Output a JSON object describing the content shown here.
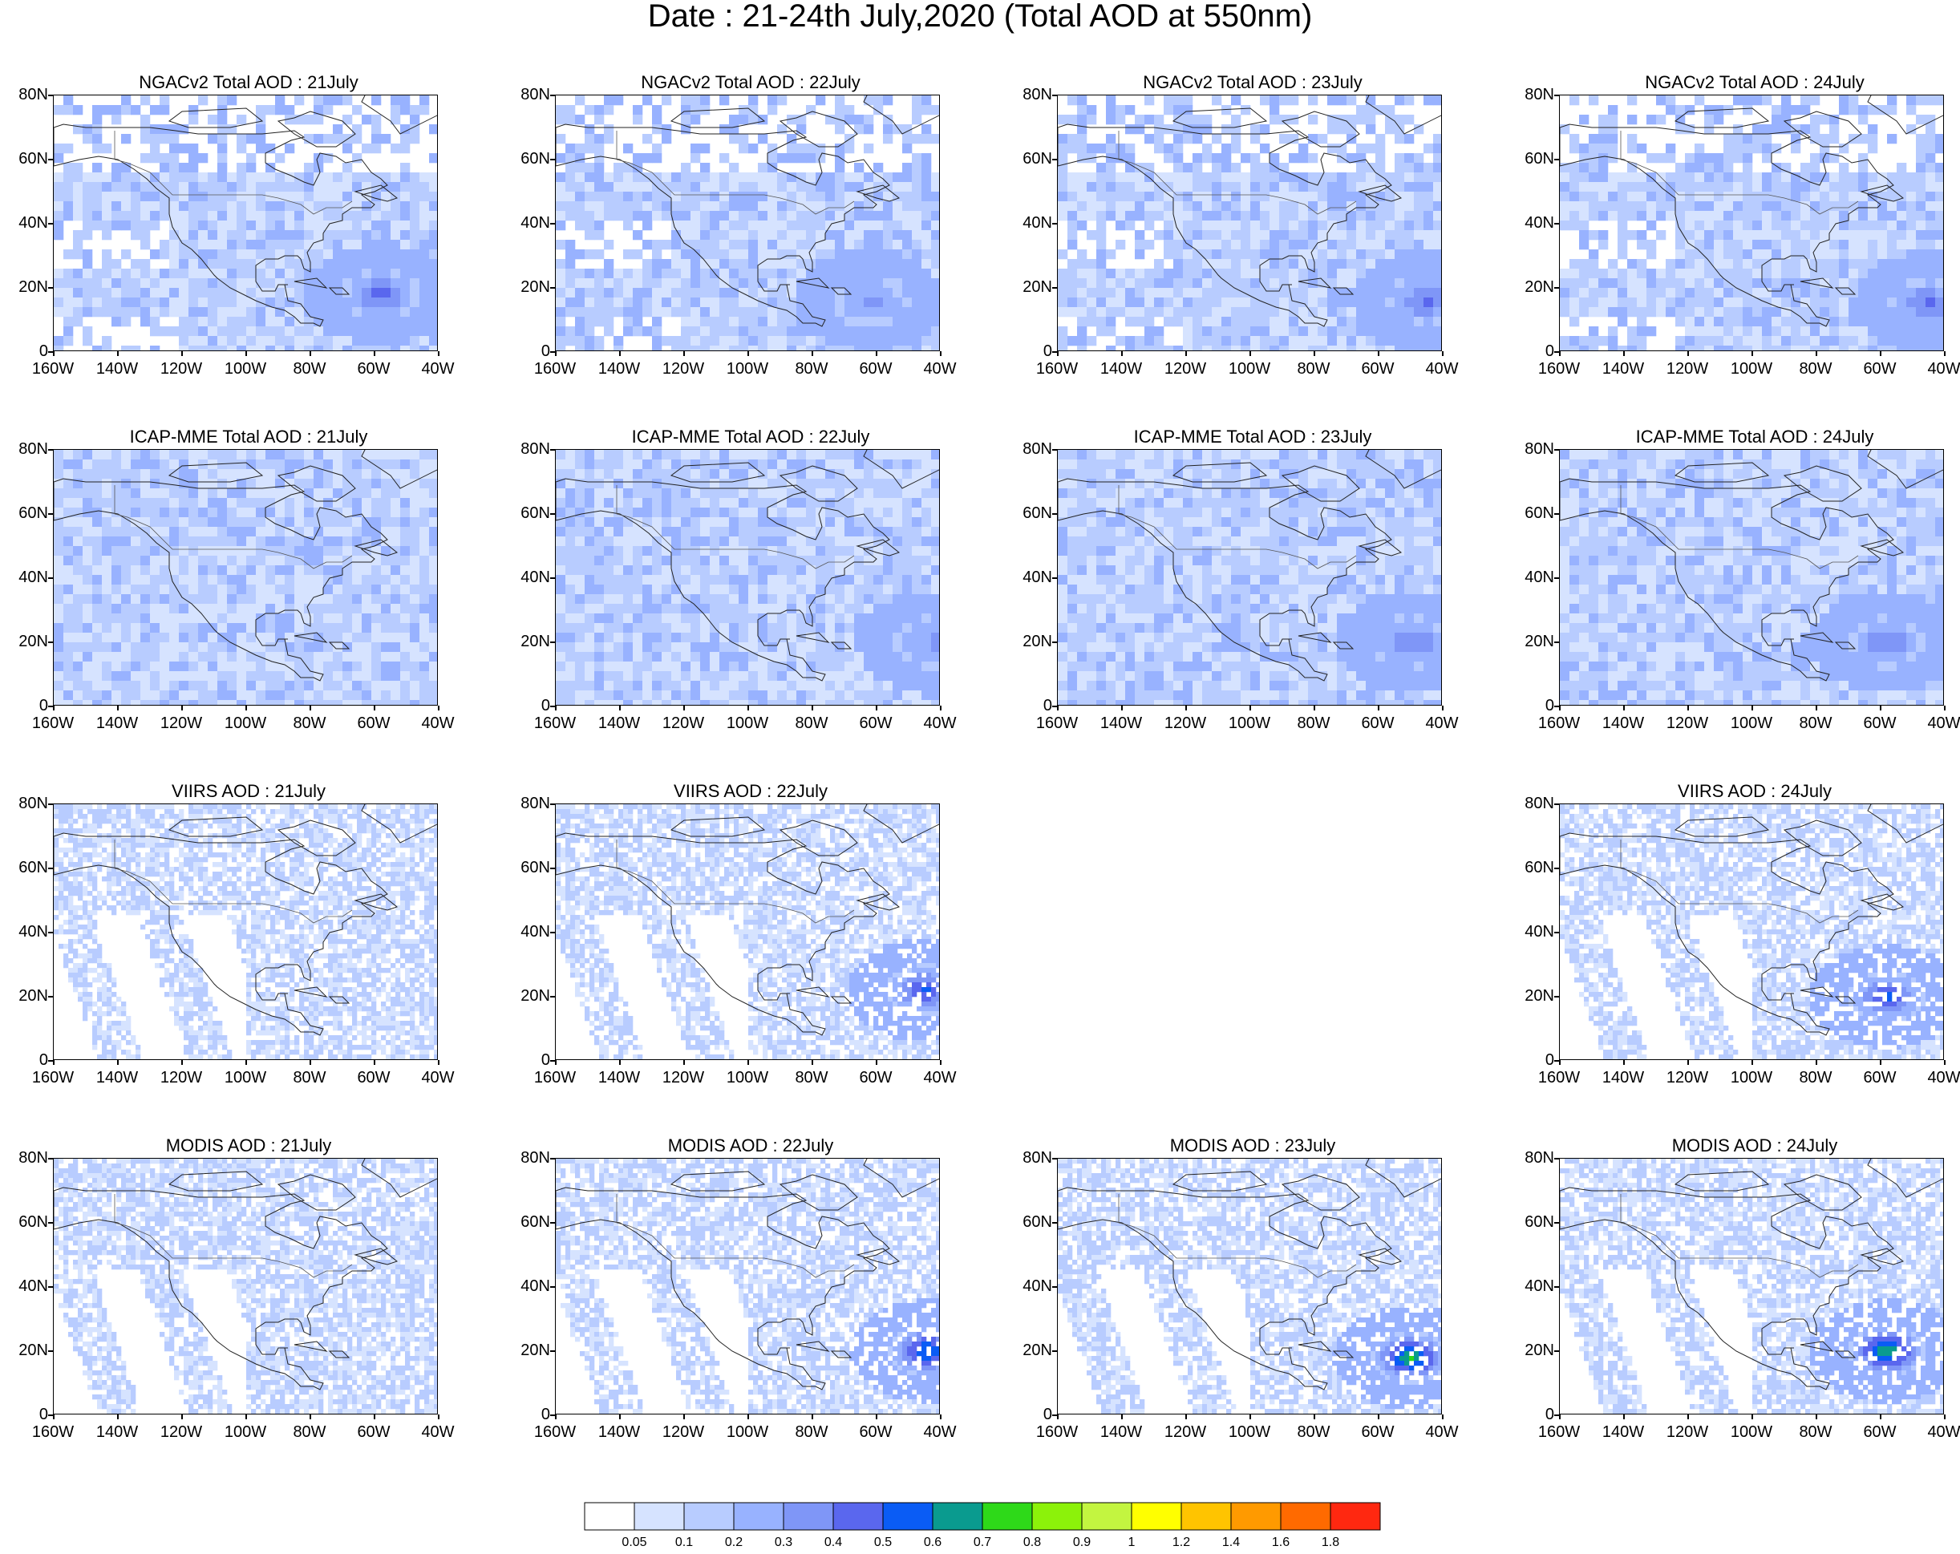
{
  "title": "Date : 21-24th July,2020 (Total AOD at 550nm)",
  "axes": {
    "lat_labels": [
      "80N",
      "60N",
      "40N",
      "20N",
      "0"
    ],
    "lon_labels": [
      "160W",
      "140W",
      "120W",
      "100W",
      "80W",
      "60W",
      "40W"
    ],
    "lat_range": [
      0,
      80
    ],
    "lon_range": [
      -160,
      -40
    ]
  },
  "colorbar": {
    "labels": [
      "0.05",
      "0.1",
      "0.2",
      "0.3",
      "0.4",
      "0.5",
      "0.6",
      "0.7",
      "0.8",
      "0.9",
      "1",
      "1.2",
      "1.4",
      "1.6",
      "1.8"
    ],
    "colors": [
      "#ffffff",
      "#d6e3ff",
      "#b8ccff",
      "#98b2ff",
      "#7f96f7",
      "#5a67ee",
      "#0a5cf5",
      "#0a9b8f",
      "#2ed919",
      "#8cf20a",
      "#c3f540",
      "#ffff00",
      "#ffc400",
      "#ff9a00",
      "#ff6a00",
      "#ff2810"
    ]
  },
  "rows": [
    {
      "product": "NGACv2 Total AOD",
      "panels": [
        {
          "title": "NGACv2 Total AOD : 21July",
          "day": 21,
          "style": "model",
          "hotspot": {
            "lon": -58,
            "lat": 18,
            "level": 5
          }
        },
        {
          "title": "NGACv2 Total AOD : 22July",
          "day": 22,
          "style": "model",
          "hotspot": {
            "lon": -62,
            "lat": 16,
            "level": 4
          }
        },
        {
          "title": "NGACv2 Total AOD : 23July",
          "day": 23,
          "style": "model",
          "hotspot": {
            "lon": -45,
            "lat": 16,
            "level": 5
          }
        },
        {
          "title": "NGACv2 Total AOD : 24July",
          "day": 24,
          "style": "model",
          "hotspot": {
            "lon": -45,
            "lat": 15,
            "level": 5
          }
        }
      ]
    },
    {
      "product": "ICAP-MME Total AOD",
      "panels": [
        {
          "title": "ICAP-MME Total AOD : 21July",
          "day": 21,
          "style": "ensemble",
          "hotspot": null
        },
        {
          "title": "ICAP-MME Total AOD : 22July",
          "day": 22,
          "style": "ensemble",
          "hotspot": {
            "lon": -42,
            "lat": 20,
            "level": 4
          }
        },
        {
          "title": "ICAP-MME Total AOD : 23July",
          "day": 23,
          "style": "ensemble",
          "hotspot": {
            "lon": -50,
            "lat": 20,
            "level": 5
          }
        },
        {
          "title": "ICAP-MME Total AOD : 24July",
          "day": 24,
          "style": "ensemble",
          "hotspot": {
            "lon": -58,
            "lat": 20,
            "level": 5
          }
        }
      ]
    },
    {
      "product": "VIIRS AOD",
      "panels": [
        {
          "title": "VIIRS AOD : 21July",
          "day": 21,
          "style": "satellite",
          "hotspot": null
        },
        {
          "title": "VIIRS AOD : 22July",
          "day": 22,
          "style": "satellite",
          "hotspot": {
            "lon": -45,
            "lat": 22,
            "level": 6
          }
        },
        null,
        {
          "title": "VIIRS AOD : 24July",
          "day": 24,
          "style": "satellite",
          "hotspot": {
            "lon": -58,
            "lat": 20,
            "level": 6
          }
        }
      ]
    },
    {
      "product": "MODIS AOD",
      "panels": [
        {
          "title": "MODIS AOD : 21July",
          "day": 21,
          "style": "swath",
          "hotspot": null
        },
        {
          "title": "MODIS AOD : 22July",
          "day": 22,
          "style": "swath",
          "hotspot": {
            "lon": -44,
            "lat": 20,
            "level": 7
          }
        },
        {
          "title": "MODIS AOD : 23July",
          "day": 23,
          "style": "swath",
          "hotspot": {
            "lon": -50,
            "lat": 18,
            "level": 8
          }
        },
        {
          "title": "MODIS AOD : 24July",
          "day": 24,
          "style": "swath",
          "hotspot": {
            "lon": -58,
            "lat": 20,
            "level": 8
          }
        }
      ]
    }
  ]
}
